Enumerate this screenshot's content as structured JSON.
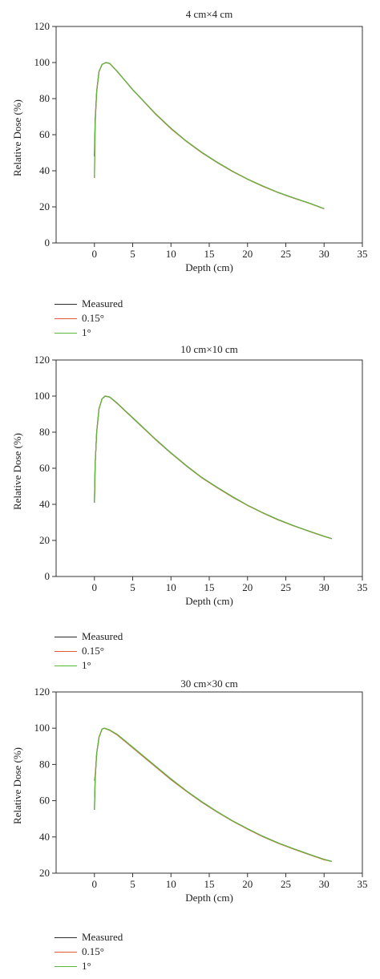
{
  "chart_data": [
    {
      "type": "line",
      "title": "4 cm×4 cm",
      "xlabel": "Depth (cm)",
      "ylabel": "Relative Dose (%)",
      "xlim": [
        -5,
        35
      ],
      "ylim": [
        0,
        120
      ],
      "xticks": [
        0,
        5,
        10,
        15,
        20,
        25,
        30,
        35
      ],
      "yticks": [
        0,
        20,
        40,
        60,
        80,
        100,
        120
      ],
      "xtick_labels": [
        "0",
        "5",
        "10",
        "15",
        "20",
        "25",
        "30",
        "35"
      ],
      "ytick_labels": [
        "0",
        "20",
        "40",
        "60",
        "80",
        "100",
        "120"
      ],
      "grid": false,
      "legend_position": "below",
      "series": [
        {
          "name": "Measured",
          "color": "#2b2b2b",
          "x": [
            0.0,
            0.1,
            0.3,
            0.6,
            1.0,
            1.5,
            2.0,
            3.0,
            4.0,
            5.0,
            6.0,
            8.0,
            10.0,
            12.0,
            14.0,
            16.0,
            18.0,
            20.0,
            22.0,
            24.0,
            26.0,
            28.0,
            30.0
          ],
          "y": [
            48,
            68,
            84,
            95,
            99,
            100,
            99.5,
            95,
            90,
            85,
            80.5,
            71.5,
            63.5,
            56.5,
            50.3,
            44.8,
            39.8,
            35.4,
            31.5,
            28,
            25,
            22.2,
            19
          ]
        },
        {
          "name": "0.15°",
          "color": "#e05a36",
          "x": [
            0.0,
            0.1,
            0.3,
            0.6,
            1.0,
            1.5,
            2.0,
            3.0,
            4.0,
            5.0,
            6.0,
            8.0,
            10.0,
            12.0,
            14.0,
            16.0,
            18.0,
            20.0,
            22.0,
            24.0,
            26.0,
            28.0,
            30.0
          ],
          "y": [
            36,
            66,
            84,
            95,
            99,
            100,
            99.4,
            95,
            90,
            85,
            80.4,
            71.3,
            63.3,
            56.3,
            50.1,
            44.6,
            39.7,
            35.3,
            31.4,
            27.9,
            24.9,
            22.1,
            19
          ]
        },
        {
          "name": "1°",
          "color": "#5cb83c",
          "x": [
            0.0,
            0.1,
            0.3,
            0.6,
            1.0,
            1.5,
            2.0,
            3.0,
            4.0,
            5.0,
            6.0,
            8.0,
            10.0,
            12.0,
            14.0,
            16.0,
            18.0,
            20.0,
            22.0,
            24.0,
            26.0,
            28.0,
            30.0
          ],
          "y": [
            36,
            66,
            84,
            95,
            99,
            100,
            99.5,
            95,
            90,
            85,
            80.5,
            71.5,
            63.5,
            56.5,
            50.3,
            44.8,
            39.8,
            35.4,
            31.5,
            28,
            25,
            22.2,
            19
          ]
        }
      ]
    },
    {
      "type": "line",
      "title": "10 cm×10 cm",
      "xlabel": "Depth (cm)",
      "ylabel": "Relative Dose (%)",
      "xlim": [
        -5,
        35
      ],
      "ylim": [
        0,
        120
      ],
      "xticks": [
        0,
        5,
        10,
        15,
        20,
        25,
        30,
        35
      ],
      "yticks": [
        0,
        20,
        40,
        60,
        80,
        100,
        120
      ],
      "xtick_labels": [
        "0",
        "5",
        "10",
        "15",
        "20",
        "25",
        "30",
        "35"
      ],
      "ytick_labels": [
        "0",
        "20",
        "40",
        "60",
        "80",
        "100",
        "120"
      ],
      "grid": false,
      "legend_position": "below",
      "series": [
        {
          "name": "Measured",
          "color": "#2b2b2b",
          "x": [
            0.0,
            0.1,
            0.3,
            0.6,
            1.0,
            1.4,
            2.0,
            3.0,
            4.0,
            5.0,
            6.0,
            8.0,
            10.0,
            12.0,
            14.0,
            16.0,
            18.0,
            20.0,
            22.0,
            24.0,
            26.0,
            28.0,
            30.0,
            31.0
          ],
          "y": [
            41,
            62,
            80,
            93,
            98.5,
            100,
            99.5,
            96,
            92,
            88,
            84,
            76,
            68.5,
            61.5,
            55,
            49.5,
            44.3,
            39.5,
            35.3,
            31.5,
            28.2,
            25.2,
            22.3,
            21
          ]
        },
        {
          "name": "0.15°",
          "color": "#e05a36",
          "x": [
            0.0,
            0.1,
            0.3,
            0.6,
            1.0,
            1.4,
            2.0,
            3.0,
            4.0,
            5.0,
            6.0,
            8.0,
            10.0,
            12.0,
            14.0,
            16.0,
            18.0,
            20.0,
            22.0,
            24.0,
            26.0,
            28.0,
            30.0,
            31.0
          ],
          "y": [
            41,
            62,
            80,
            93,
            98.5,
            100,
            99.4,
            95.8,
            91.8,
            87.8,
            83.8,
            75.8,
            68.3,
            61.3,
            54.8,
            49.3,
            44.1,
            39.4,
            35.2,
            31.4,
            28.1,
            25.1,
            22.2,
            21
          ]
        },
        {
          "name": "1°",
          "color": "#5cb83c",
          "x": [
            0.0,
            0.1,
            0.3,
            0.6,
            1.0,
            1.4,
            2.0,
            3.0,
            4.0,
            5.0,
            6.0,
            8.0,
            10.0,
            12.0,
            14.0,
            16.0,
            18.0,
            20.0,
            22.0,
            24.0,
            26.0,
            28.0,
            30.0,
            31.0
          ],
          "y": [
            41,
            62,
            80,
            93,
            98.5,
            100,
            99.5,
            96,
            92,
            88,
            84,
            76,
            68.5,
            61.5,
            55,
            49.5,
            44.3,
            39.5,
            35.3,
            31.5,
            28.2,
            25.2,
            22.3,
            21
          ]
        }
      ]
    },
    {
      "type": "line",
      "title": "30 cm×30 cm",
      "xlabel": "Depth (cm)",
      "ylabel": "Relative Dose (%)",
      "xlim": [
        -5,
        35
      ],
      "ylim": [
        20,
        120
      ],
      "xticks": [
        0,
        5,
        10,
        15,
        20,
        25,
        30,
        35
      ],
      "yticks": [
        20,
        40,
        60,
        80,
        100,
        120
      ],
      "xtick_labels": [
        "0",
        "5",
        "10",
        "15",
        "20",
        "25",
        "30",
        "35"
      ],
      "ytick_labels": [
        "20",
        "40",
        "60",
        "80",
        "100",
        "120"
      ],
      "grid": false,
      "legend_position": "below",
      "series": [
        {
          "name": "Measured",
          "color": "#2b2b2b",
          "x": [
            0.0,
            0.1,
            0.3,
            0.6,
            1.0,
            1.3,
            2.0,
            3.0,
            4.0,
            5.0,
            6.0,
            8.0,
            10.0,
            12.0,
            14.0,
            16.0,
            18.0,
            20.0,
            22.0,
            24.0,
            26.0,
            28.0,
            30.0,
            31.0
          ],
          "y": [
            55,
            72,
            86,
            95,
            99.5,
            100,
            99,
            96.5,
            93,
            89.5,
            86,
            79,
            72,
            65.5,
            59.5,
            54,
            49,
            44.5,
            40.3,
            36.7,
            33.5,
            30.5,
            27.6,
            26.5
          ]
        },
        {
          "name": "0.15°",
          "color": "#e05a36",
          "x": [
            0.0,
            0.1,
            0.3,
            0.6,
            1.0,
            1.3,
            2.0,
            3.0,
            4.0,
            5.0,
            6.0,
            8.0,
            10.0,
            12.0,
            14.0,
            16.0,
            18.0,
            20.0,
            22.0,
            24.0,
            26.0,
            28.0,
            30.0,
            31.0
          ],
          "y": [
            71,
            74,
            86,
            95,
            99.5,
            100,
            98.8,
            96.2,
            92.7,
            89.2,
            85.6,
            78.6,
            71.6,
            65.2,
            59.2,
            53.8,
            48.8,
            44.3,
            40.1,
            36.5,
            33.3,
            30.3,
            27.4,
            26.5
          ]
        },
        {
          "name": "1°",
          "color": "#5cb83c",
          "x": [
            0.0,
            0.1,
            0.3,
            0.6,
            1.0,
            1.3,
            2.0,
            3.0,
            4.0,
            5.0,
            6.0,
            8.0,
            10.0,
            12.0,
            14.0,
            16.0,
            18.0,
            20.0,
            22.0,
            24.0,
            26.0,
            28.0,
            30.0,
            31.0
          ],
          "y": [
            55,
            72,
            86,
            95,
            99.5,
            100,
            99,
            96.5,
            93,
            89.5,
            86,
            79,
            72,
            65.5,
            59.5,
            54,
            49,
            44.5,
            40.3,
            36.7,
            33.5,
            30.5,
            27.6,
            26.5
          ]
        }
      ]
    }
  ]
}
